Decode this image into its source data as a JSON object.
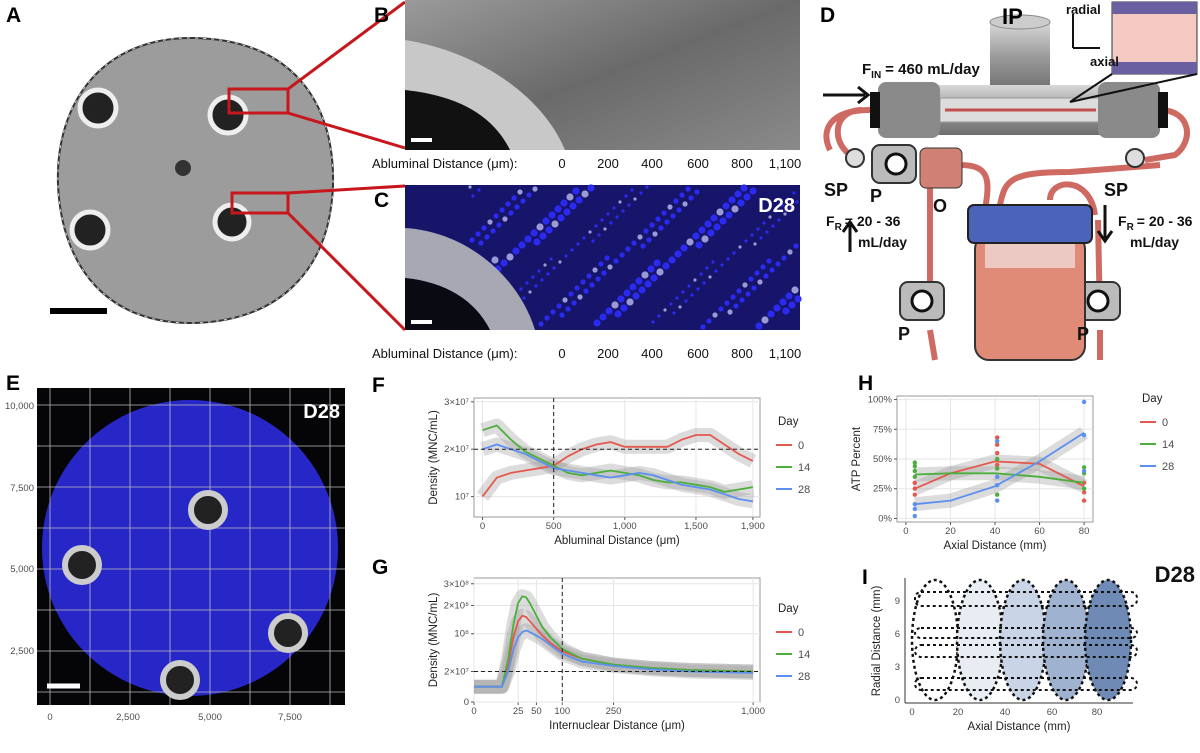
{
  "panel_labels": [
    "A",
    "B",
    "C",
    "D",
    "E",
    "F",
    "G",
    "H",
    "I"
  ],
  "panel_b": {
    "axis_label": "Abluminal Distance (μm):",
    "ticks": [
      "0",
      "200",
      "400",
      "600",
      "800",
      "1,100"
    ]
  },
  "panel_c": {
    "tag": "D28",
    "axis_label": "Abluminal Distance (μm):",
    "ticks": [
      "0",
      "200",
      "400",
      "600",
      "800",
      "1,100"
    ]
  },
  "panel_d": {
    "inlet": "IP",
    "radial": "radial",
    "axial": "axial",
    "flow_in": {
      "symbol": "F",
      "subscript": "IN",
      "text": "= 460 mL/day"
    },
    "flow_return": [
      {
        "symbol": "F",
        "subscript": "R",
        "line1": "= 20 - 36",
        "line2": "mL/day"
      },
      {
        "symbol": "F",
        "subscript": "R",
        "line1": "= 20 - 36",
        "line2": "mL/day"
      }
    ],
    "labels": [
      "SP",
      "P",
      "O",
      "SP",
      "P",
      "P"
    ]
  },
  "panel_e": {
    "tag": "D28",
    "yticks": [
      "10,000",
      "7,500",
      "5,000",
      "2,500"
    ],
    "xticks": [
      "0",
      "2,500",
      "5,000",
      "7,500"
    ]
  },
  "panel_i": {
    "tag": "D28",
    "xlabel": "Axial Distance (mm)",
    "ylabel": "Radial Distance (mm)",
    "xticks": [
      "0",
      "20",
      "40",
      "60",
      "80"
    ],
    "yticks": [
      "0",
      "3",
      "6",
      "9"
    ]
  },
  "chart_data": [
    {
      "type": "line",
      "xlabel": "Abluminal Distance (μm)",
      "ylabel": "Density (MNC/mL)",
      "legend_title": "Day",
      "legend": "right",
      "grid": true,
      "xlim": [
        -60,
        1950
      ],
      "ylim": [
        5700000,
        30800000
      ],
      "xticks": [
        0,
        500,
        {
          "value": 1000,
          "label": "1,000"
        },
        {
          "value": 1500,
          "label": "1,500"
        },
        {
          "value": 1900,
          "label": "1,900"
        }
      ],
      "yticks": [
        {
          "value": 10000000,
          "label": "10⁷"
        },
        {
          "value": 20000000,
          "label": "2×10⁷"
        },
        {
          "value": 30000000,
          "label": "3×10⁷"
        }
      ],
      "vline": 500,
      "hline": 20000000,
      "x": [
        0,
        100,
        200,
        300,
        400,
        500,
        600,
        700,
        800,
        900,
        1000,
        1100,
        1200,
        1300,
        1400,
        1500,
        1600,
        1700,
        1800,
        1900
      ],
      "series": [
        {
          "name": "0",
          "color": "#e4594e",
          "values": [
            10000000,
            14000000,
            15000000,
            15500000,
            16000000,
            16500000,
            18500000,
            20000000,
            21000000,
            21500000,
            20500000,
            20500000,
            20500000,
            20500000,
            22000000,
            23000000,
            23000000,
            21000000,
            19000000,
            17500000
          ]
        },
        {
          "name": "14",
          "color": "#4caf3c",
          "values": [
            24000000,
            25000000,
            22000000,
            19500000,
            18000000,
            16500000,
            15000000,
            14500000,
            15000000,
            15500000,
            15000000,
            14500000,
            13500000,
            13000000,
            13000000,
            12500000,
            12000000,
            11000000,
            11500000,
            12000000
          ]
        },
        {
          "name": "28",
          "color": "#5b8ff0",
          "values": [
            20000000,
            21000000,
            20000000,
            19000000,
            17500000,
            16000000,
            15500000,
            15000000,
            14500000,
            14000000,
            14500000,
            15000000,
            14500000,
            13500000,
            12500000,
            12000000,
            11500000,
            10500000,
            9500000,
            9000000
          ]
        }
      ]
    },
    {
      "type": "line",
      "xlabel": "Internuclear Distance (μm)",
      "ylabel": "Density (MNC/mL)",
      "legend_title": "Day",
      "legend": "right",
      "grid": true,
      "xscale": "sqrt",
      "yscale": "sqrt",
      "xlim": [
        0,
        1050
      ],
      "ylim": [
        0,
        330000000
      ],
      "xticks": [
        0,
        25,
        50,
        100,
        250,
        {
          "value": 1000,
          "label": "1,000"
        }
      ],
      "yticks": [
        0,
        {
          "value": 20000000,
          "label": "2×10⁷"
        },
        {
          "value": 100000000,
          "label": "10⁸"
        },
        {
          "value": 200000000,
          "label": "2×10⁸"
        },
        {
          "value": 300000000,
          "label": "3×10⁸"
        }
      ],
      "vline": 100,
      "hline": 20000000,
      "x": [
        0,
        10,
        15,
        20,
        25,
        30,
        35,
        40,
        50,
        60,
        75,
        100,
        150,
        250,
        400,
        600,
        1000
      ],
      "series": [
        {
          "name": "0",
          "color": "#e4594e",
          "values": [
            5000000,
            5000000,
            30000000,
            90000000,
            140000000,
            160000000,
            155000000,
            140000000,
            115000000,
            95000000,
            75000000,
            55000000,
            40000000,
            30000000,
            25000000,
            22000000,
            20000000
          ]
        },
        {
          "name": "14",
          "color": "#4caf3c",
          "values": [
            5000000,
            5000000,
            40000000,
            130000000,
            210000000,
            240000000,
            235000000,
            210000000,
            160000000,
            120000000,
            90000000,
            60000000,
            40000000,
            30000000,
            25000000,
            22000000,
            20000000
          ]
        },
        {
          "name": "28",
          "color": "#5b8ff0",
          "values": [
            5000000,
            5000000,
            20000000,
            60000000,
            90000000,
            105000000,
            110000000,
            105000000,
            95000000,
            85000000,
            70000000,
            50000000,
            35000000,
            28000000,
            23000000,
            20000000,
            18000000
          ]
        }
      ]
    },
    {
      "type": "scatter",
      "xlabel": "Axial Distance (mm)",
      "ylabel": "ATP Percent",
      "legend_title": "Day",
      "legend": "right",
      "grid": true,
      "xlim": [
        -4,
        84
      ],
      "ylim": [
        -3,
        103
      ],
      "xticks": [
        0,
        20,
        40,
        60,
        80
      ],
      "yticks": [
        {
          "value": 0,
          "label": "0%"
        },
        {
          "value": 25,
          "label": "25%"
        },
        {
          "value": 50,
          "label": "50%"
        },
        {
          "value": 75,
          "label": "75%"
        },
        {
          "value": 100,
          "label": "100%"
        }
      ],
      "fit_x": [
        4,
        20,
        40,
        60,
        80
      ],
      "series": [
        {
          "name": "0",
          "color": "#e4594e",
          "x": [
            4,
            4,
            4,
            41,
            41,
            41,
            41,
            80,
            80,
            80
          ],
          "values": [
            25,
            30,
            20,
            68,
            62,
            55,
            45,
            30,
            22,
            15
          ],
          "fit": [
            25,
            38,
            48,
            46,
            27
          ]
        },
        {
          "name": "14",
          "color": "#4caf3c",
          "x": [
            4,
            4,
            4,
            4,
            41,
            41,
            41,
            80,
            80,
            80
          ],
          "values": [
            47,
            44,
            40,
            35,
            50,
            42,
            20,
            43,
            38,
            25
          ],
          "fit": [
            37,
            38,
            38,
            35,
            30
          ]
        },
        {
          "name": "28",
          "color": "#5b8ff0",
          "x": [
            4,
            4,
            4,
            41,
            41,
            41,
            41,
            80,
            80,
            80
          ],
          "values": [
            12,
            8,
            2,
            65,
            35,
            28,
            15,
            98,
            70,
            40
          ],
          "fit": [
            12,
            15,
            27,
            48,
            72
          ]
        }
      ]
    }
  ]
}
